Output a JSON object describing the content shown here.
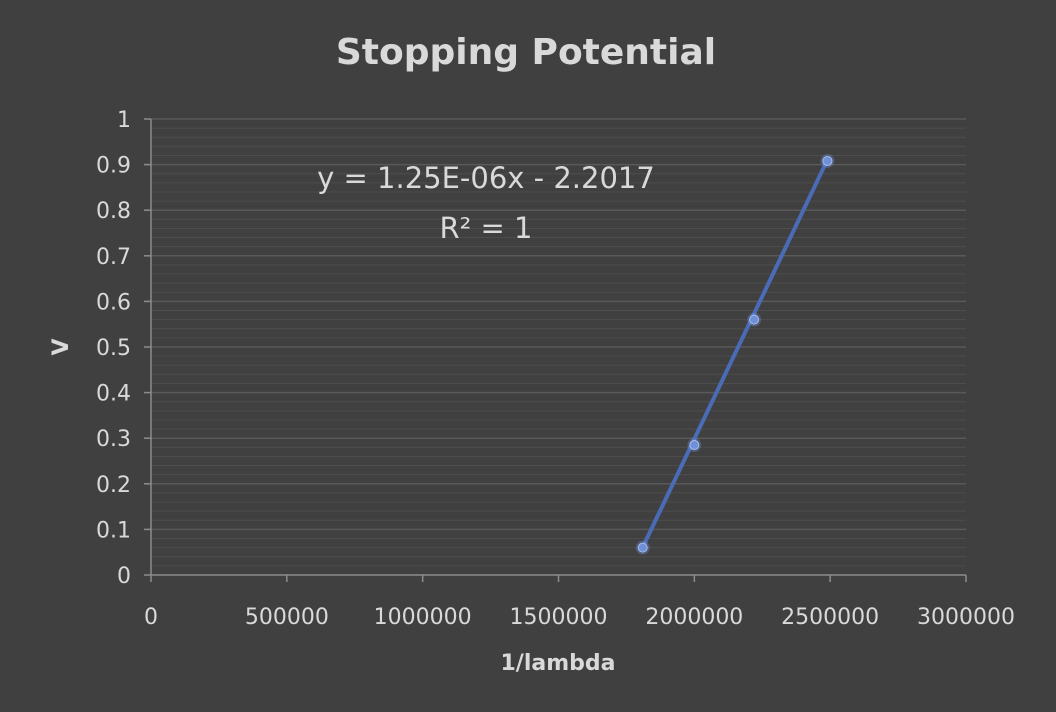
{
  "chart_data": {
    "type": "scatter",
    "title": "Stopping Potential",
    "xlabel": "1/lambda",
    "ylabel": "V",
    "xlim": [
      0,
      3000000
    ],
    "ylim": [
      0,
      1
    ],
    "x_ticks": [
      "0",
      "500000",
      "1000000",
      "1500000",
      "2000000",
      "2500000",
      "3000000"
    ],
    "y_ticks": [
      "0",
      "0.1",
      "0.2",
      "0.3",
      "0.4",
      "0.5",
      "0.6",
      "0.7",
      "0.8",
      "0.9",
      "1"
    ],
    "grid": true,
    "series": [
      {
        "x": [
          1810000,
          2000000,
          2220000,
          2490000
        ],
        "y": [
          0.06,
          0.285,
          0.56,
          0.908
        ],
        "color": "#6f8fd6"
      }
    ],
    "trendline": {
      "type": "linear",
      "equation": "y = 1.25E-06x - 2.2017",
      "r_squared": "R² = 1",
      "slope": 1.25e-06,
      "intercept": -2.2017,
      "color": "#4a6bb5"
    },
    "colors": {
      "background": "#404040",
      "text": "#d9d9d9",
      "gridline": "#595959"
    }
  }
}
